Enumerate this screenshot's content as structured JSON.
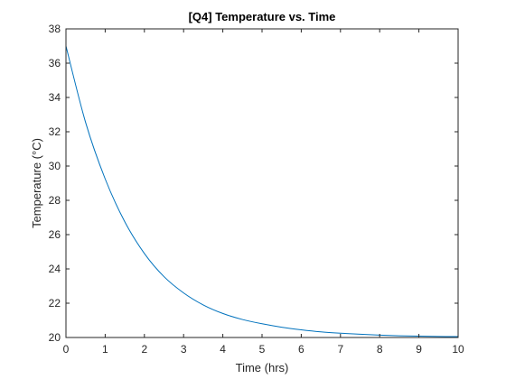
{
  "chart_data": {
    "type": "line",
    "title": "[Q4] Temperature vs. Time",
    "xlabel": "Time (hrs)",
    "ylabel": "Temperature (°C)",
    "xlim": [
      0,
      10
    ],
    "ylim": [
      20,
      38
    ],
    "xticks": [
      0,
      1,
      2,
      3,
      4,
      5,
      6,
      7,
      8,
      9,
      10
    ],
    "yticks": [
      20,
      22,
      24,
      26,
      28,
      30,
      32,
      34,
      36,
      38
    ],
    "grid": false,
    "legend": "none",
    "series": [
      {
        "color": "#0072BD",
        "x": [
          0,
          0.5,
          1,
          1.5,
          2,
          2.5,
          3,
          3.5,
          4,
          4.5,
          5,
          5.5,
          6,
          6.5,
          7,
          7.5,
          8,
          8.5,
          9,
          9.5,
          10
        ],
        "y": [
          37.0,
          32.55,
          29.25,
          26.75,
          24.9,
          23.55,
          22.6,
          21.9,
          21.4,
          21.05,
          20.8,
          20.6,
          20.45,
          20.33,
          20.25,
          20.19,
          20.14,
          20.1,
          20.08,
          20.06,
          20.05
        ]
      }
    ]
  }
}
